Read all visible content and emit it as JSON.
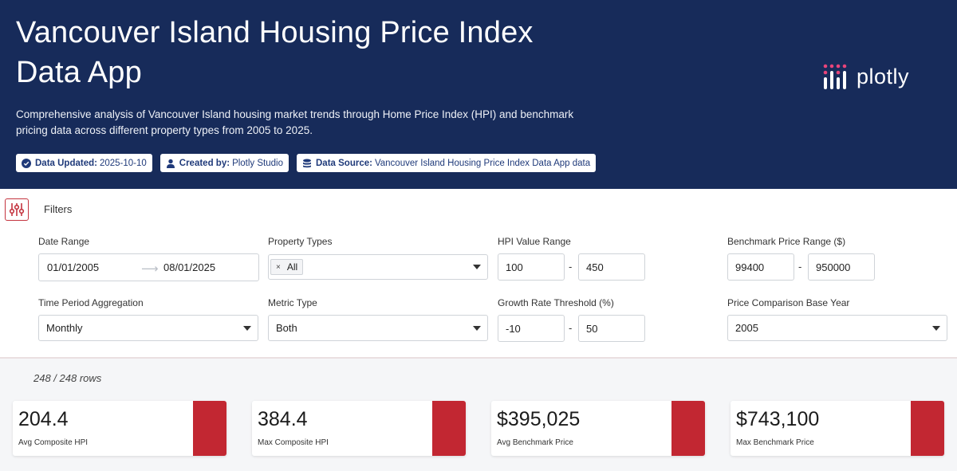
{
  "header": {
    "title": "Vancouver Island Housing Price Index Data App",
    "subtitle": "Comprehensive analysis of Vancouver Island housing market trends through Home Price Index (HPI) and benchmark pricing data across different property types from 2005 to 2025.",
    "logo_text": "plotly",
    "badges": [
      {
        "key": "Data Updated:",
        "value": "2025-10-10",
        "icon": "check-circle-icon"
      },
      {
        "key": "Created by:",
        "value": "Plotly Studio",
        "icon": "user-icon"
      },
      {
        "key": "Data Source:",
        "value": "Vancouver Island Housing Price Index Data App data",
        "icon": "database-icon"
      }
    ]
  },
  "filters": {
    "title": "Filters",
    "date_range": {
      "label": "Date Range",
      "start": "01/01/2005",
      "end": "08/01/2025"
    },
    "property_types": {
      "label": "Property Types",
      "chip": "All",
      "chip_remove": "×"
    },
    "hpi_range": {
      "label": "HPI Value Range",
      "min": "100",
      "max": "450"
    },
    "benchmark_range": {
      "label": "Benchmark Price Range ($)",
      "min": "99400",
      "max": "950000"
    },
    "aggregation": {
      "label": "Time Period Aggregation",
      "value": "Monthly"
    },
    "metric_type": {
      "label": "Metric Type",
      "value": "Both"
    },
    "growth_threshold": {
      "label": "Growth Rate Threshold (%)",
      "min": "-10",
      "max": "50"
    },
    "base_year": {
      "label": "Price Comparison Base Year",
      "value": "2005"
    },
    "separator": "-"
  },
  "rows_count": "248 / 248 rows",
  "cards": [
    {
      "value": "204.4",
      "label": "Avg Composite HPI"
    },
    {
      "value": "384.4",
      "label": "Max Composite HPI"
    },
    {
      "value": "$395,025",
      "label": "Avg Benchmark Price"
    },
    {
      "value": "$743,100",
      "label": "Max Benchmark Price"
    }
  ],
  "colors": {
    "header_bg": "#172b5a",
    "accent": "#c22732",
    "badge_text": "#1f3a7a"
  }
}
